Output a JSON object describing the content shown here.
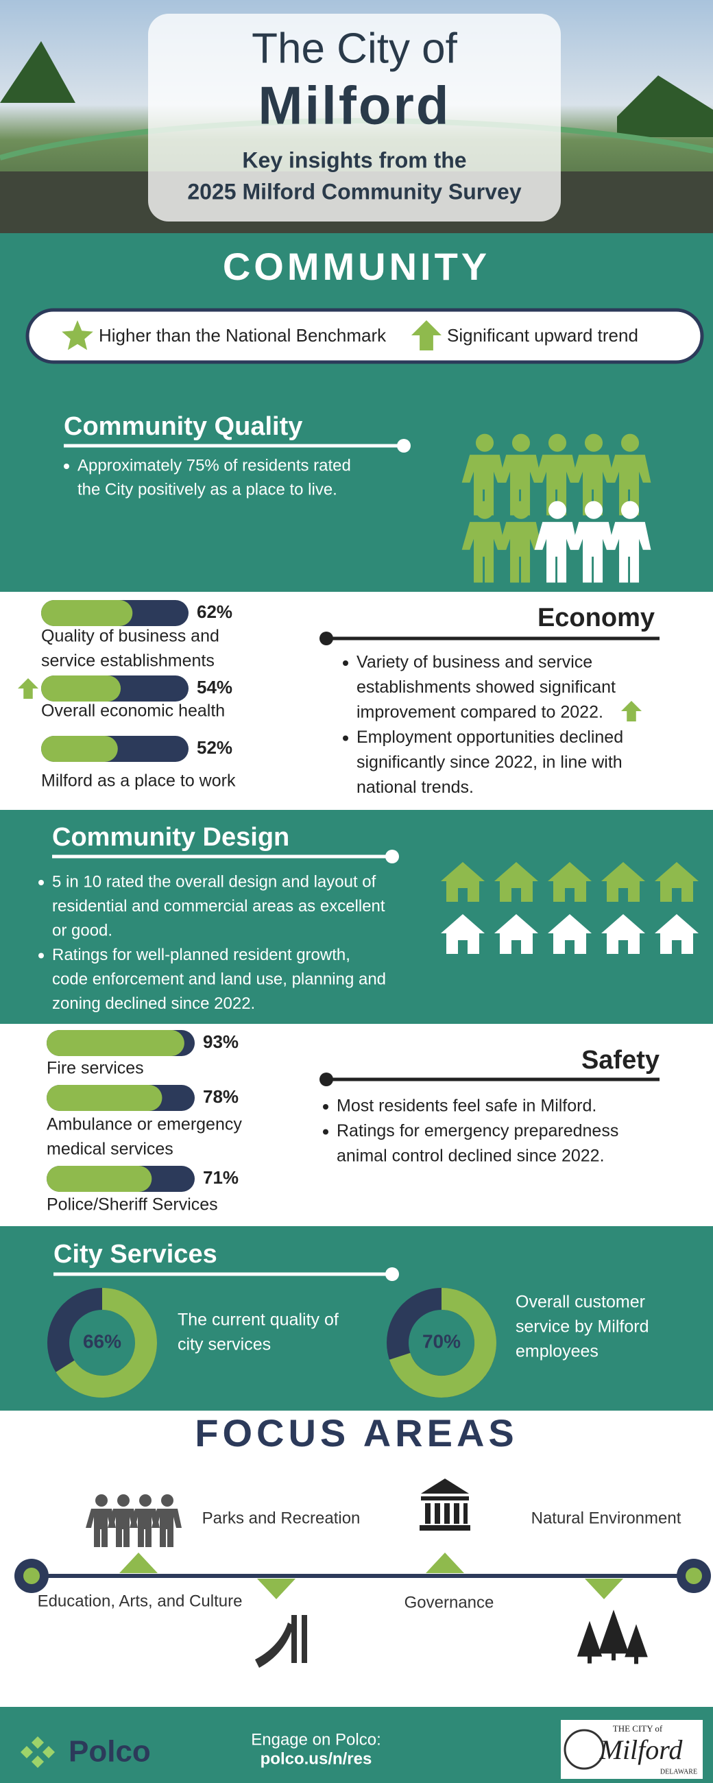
{
  "header": {
    "title_line1": "The City of",
    "title_line2": "Milford",
    "subtitle_line1": "Key insights from the",
    "subtitle_line2": "2025 Milford Community Survey"
  },
  "community": {
    "heading": "COMMUNITY",
    "legend": [
      "Higher than the National Benchmark",
      "Significant upward trend"
    ]
  },
  "community_quality": {
    "title": "Community Quality",
    "bullets": [
      [
        "Approximately 75% of residents rated",
        "the City positively as a place to live."
      ]
    ]
  },
  "economy": {
    "title": "Economy",
    "bars": [
      {
        "label_lines": [
          "Quality of business and",
          "service establishments"
        ],
        "value": 62,
        "value_label": "62%"
      },
      {
        "label_lines": [
          "Overall economic health"
        ],
        "value": 54,
        "value_label": "54%"
      },
      {
        "label_lines": [
          "Milford as a place to work"
        ],
        "value": 52,
        "value_label": "52%"
      }
    ],
    "bullets": [
      [
        "Variety of business and service",
        "establishments showed significant",
        "improvement compared to 2022."
      ],
      [
        "Employment opportunities declined",
        "significantly since 2022, in line with",
        "national trends."
      ]
    ]
  },
  "community_design": {
    "title": "Community Design",
    "bullets": [
      [
        "5 in 10 rated the overall design and layout of",
        "residential and commercial areas as excellent",
        "or good."
      ],
      [
        "Ratings for well-planned resident growth,",
        "code enforcement and land use, planning and",
        "zoning declined since 2022."
      ]
    ]
  },
  "safety": {
    "title": "Safety",
    "bars": [
      {
        "label_lines": [
          "Fire services"
        ],
        "value": 93,
        "value_label": "93%"
      },
      {
        "label_lines": [
          "Ambulance or emergency",
          "medical services"
        ],
        "value": 78,
        "value_label": "78%"
      },
      {
        "label_lines": [
          "Police/Sheriff Services"
        ],
        "value": 71,
        "value_label": "71%"
      }
    ],
    "bullets": [
      [
        "Most residents feel safe in Milford."
      ],
      [
        "Ratings for emergency preparedness",
        "animal control declined since 2022."
      ]
    ]
  },
  "city_services": {
    "title": "City Services",
    "donuts": [
      {
        "value": 66,
        "value_label": "66%",
        "label_lines": [
          "The current quality of",
          "city services"
        ]
      },
      {
        "value": 70,
        "value_label": "70%",
        "label_lines": [
          "Overall customer",
          "service by Milford",
          "employees"
        ]
      }
    ]
  },
  "focus_areas": {
    "heading": "FOCUS AREAS",
    "items": [
      "Parks and Recreation",
      "Natural Environment",
      "Education, Arts, and Culture",
      "Governance"
    ]
  },
  "footer": {
    "brand": "Polco",
    "engage_line1": "Engage on Polco:",
    "engage_line2": "polco.us/n/res",
    "logo_top": "THE CITY of",
    "logo_name": "Milford",
    "logo_state": "DELAWARE"
  }
}
